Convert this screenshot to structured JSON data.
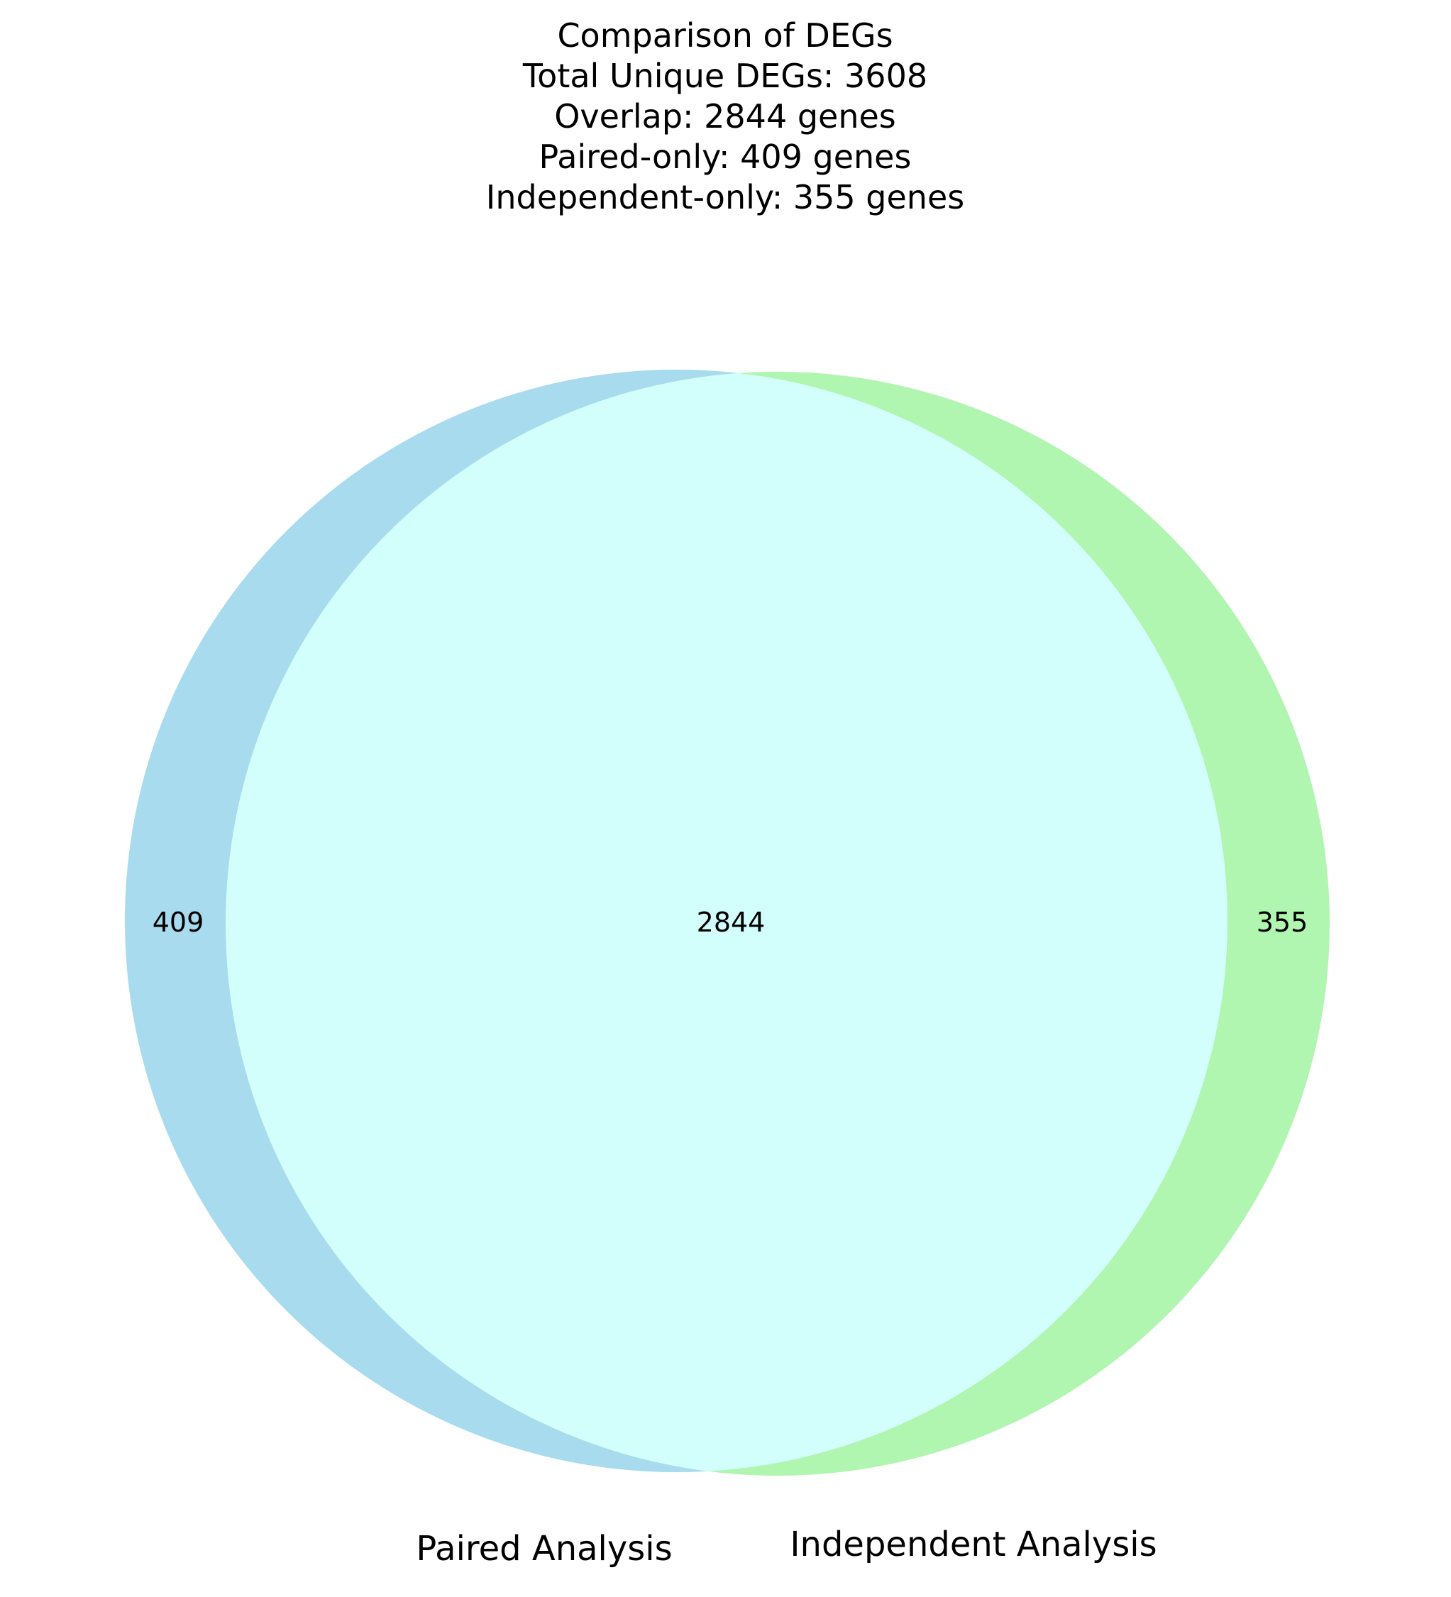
{
  "title_lines": [
    "Comparison of DEGs",
    "Total Unique DEGs: 3608",
    "Overlap: 2844 genes",
    "Paired-only: 409 genes",
    "Independent-only: 355 genes"
  ],
  "sets": {
    "left": {
      "label": "Paired Analysis",
      "only_count": "409",
      "color": "#a8dbed"
    },
    "right": {
      "label": "Independent Analysis",
      "only_count": "355",
      "color": "#b0f5b0"
    }
  },
  "overlap": {
    "count": "2844",
    "color": "#d2fffc"
  },
  "chart_data": {
    "type": "venn",
    "sets": [
      "Paired Analysis",
      "Independent Analysis"
    ],
    "values": {
      "Paired Analysis only": 409,
      "Independent Analysis only": 355,
      "Both": 2844
    },
    "total_unique": 3608
  }
}
